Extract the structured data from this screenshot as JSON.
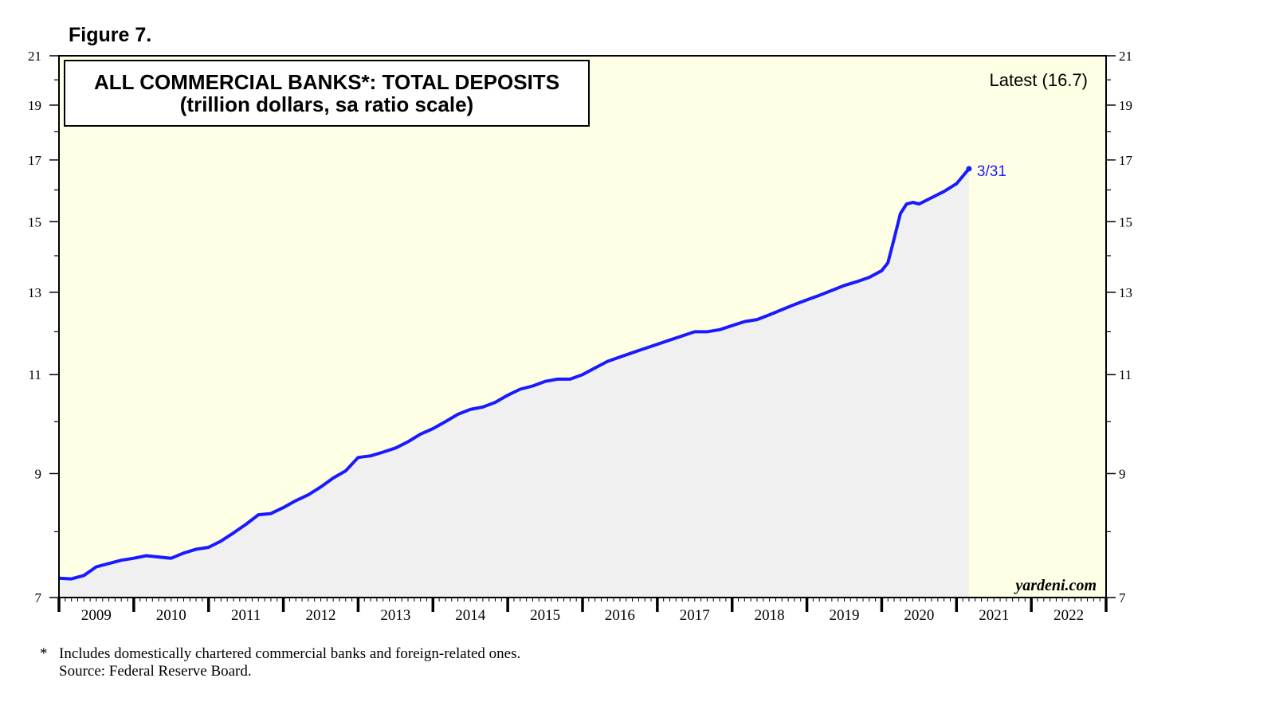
{
  "figure_label": "Figure 7.",
  "chart_data": {
    "type": "area",
    "title": "ALL COMMERCIAL BANKS*: TOTAL DEPOSITS",
    "subtitle": "(trillion dollars, sa ratio scale)",
    "latest_label": "Latest (16.7)",
    "end_label": "3/31",
    "credit": "yardeni.com",
    "y_scale": "log",
    "ylim": [
      7,
      21
    ],
    "y_ticks": [
      7,
      9,
      11,
      13,
      15,
      17,
      19,
      21
    ],
    "y_tick_labels": [
      "7",
      "9",
      "11",
      "13",
      "15",
      "17",
      "19",
      "21"
    ],
    "y_minor_ticks": [
      8,
      10,
      12,
      14,
      16,
      18,
      20
    ],
    "xlim": [
      "2009-01-01",
      "2023-01-01"
    ],
    "x_tick_labels": [
      "2009",
      "2010",
      "2011",
      "2012",
      "2013",
      "2014",
      "2015",
      "2016",
      "2017",
      "2018",
      "2019",
      "2020",
      "2021",
      "2022"
    ],
    "grid": false,
    "colors": {
      "line": "#1a1aff",
      "area_fill": "#f0f0f0",
      "plot_background": "#ffffe6",
      "frame": "#000000"
    },
    "series": [
      {
        "x": [
          "2009-01",
          "2009-03",
          "2009-05",
          "2009-07",
          "2009-09",
          "2009-11",
          "2010-01",
          "2010-03",
          "2010-05",
          "2010-07",
          "2010-09",
          "2010-11",
          "2011-01",
          "2011-03",
          "2011-05",
          "2011-07",
          "2011-09",
          "2011-11",
          "2012-01",
          "2012-03",
          "2012-05",
          "2012-07",
          "2012-09",
          "2012-11",
          "2013-01",
          "2013-03",
          "2013-05",
          "2013-07",
          "2013-09",
          "2013-11",
          "2014-01",
          "2014-03",
          "2014-05",
          "2014-07",
          "2014-09",
          "2014-11",
          "2015-01",
          "2015-03",
          "2015-05",
          "2015-07",
          "2015-09",
          "2015-11",
          "2016-01",
          "2016-03",
          "2016-05",
          "2016-07",
          "2016-09",
          "2016-11",
          "2017-01",
          "2017-03",
          "2017-05",
          "2017-07",
          "2017-09",
          "2017-11",
          "2018-01",
          "2018-03",
          "2018-05",
          "2018-07",
          "2018-09",
          "2018-11",
          "2019-01",
          "2019-03",
          "2019-05",
          "2019-07",
          "2019-09",
          "2019-11",
          "2020-01",
          "2020-02",
          "2020-03",
          "2020-04",
          "2020-05",
          "2020-06",
          "2020-07",
          "2020-09",
          "2020-11",
          "2021-01",
          "2021-03"
        ],
        "values": [
          7.28,
          7.27,
          7.32,
          7.45,
          7.5,
          7.55,
          7.58,
          7.62,
          7.6,
          7.58,
          7.66,
          7.72,
          7.75,
          7.85,
          7.98,
          8.12,
          8.28,
          8.3,
          8.4,
          8.52,
          8.62,
          8.76,
          8.92,
          9.05,
          9.3,
          9.33,
          9.4,
          9.48,
          9.6,
          9.75,
          9.86,
          10.0,
          10.15,
          10.25,
          10.3,
          10.4,
          10.55,
          10.68,
          10.75,
          10.85,
          10.9,
          10.9,
          11.0,
          11.15,
          11.3,
          11.4,
          11.5,
          11.6,
          11.7,
          11.8,
          11.9,
          12.0,
          12.0,
          12.05,
          12.15,
          12.25,
          12.3,
          12.42,
          12.55,
          12.68,
          12.8,
          12.92,
          13.05,
          13.18,
          13.28,
          13.4,
          13.58,
          13.8,
          14.5,
          15.25,
          15.55,
          15.6,
          15.55,
          15.75,
          15.95,
          16.2,
          16.7
        ]
      }
    ]
  },
  "footnote": {
    "marker": "*",
    "line1": "Includes domestically chartered commercial banks and foreign-related ones.",
    "line2": "Source: Federal Reserve Board."
  }
}
